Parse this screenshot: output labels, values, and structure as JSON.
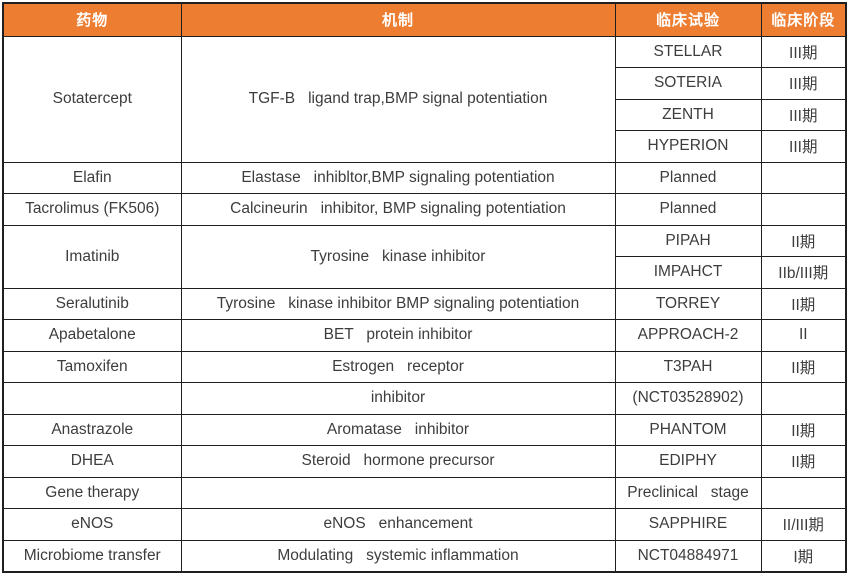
{
  "colors": {
    "header_bg": "#ED7D31",
    "header_text": "#FFFFFF",
    "body_text": "#3D3D3D",
    "border": "#1F1F1F"
  },
  "table": {
    "columns": [
      "药物",
      "机制",
      "临床试验",
      "临床阶段"
    ],
    "rows": [
      {
        "cells": [
          {
            "col": 0,
            "rowspan": 4,
            "text": "Sotatercept"
          },
          {
            "col": 1,
            "rowspan": 4,
            "text": "TGF-B   ligand trap,BMP signal potentiation"
          },
          {
            "col": 2,
            "text": "STELLAR"
          },
          {
            "col": 3,
            "text": "III期"
          }
        ]
      },
      {
        "cells": [
          {
            "col": 2,
            "text": "SOTERIA"
          },
          {
            "col": 3,
            "text": "III期"
          }
        ]
      },
      {
        "cells": [
          {
            "col": 2,
            "text": "ZENTH"
          },
          {
            "col": 3,
            "text": "III期"
          }
        ]
      },
      {
        "cells": [
          {
            "col": 2,
            "text": "HYPERION"
          },
          {
            "col": 3,
            "text": "III期"
          }
        ]
      },
      {
        "cells": [
          {
            "col": 0,
            "text": "Elafin"
          },
          {
            "col": 1,
            "text": "Elastase   inhibltor,BMP signaling potentiation"
          },
          {
            "col": 2,
            "text": "Planned"
          },
          {
            "col": 3,
            "text": ""
          }
        ]
      },
      {
        "cells": [
          {
            "col": 0,
            "text": "Tacrolimus (FK506)"
          },
          {
            "col": 1,
            "text": "Calcineurin   inhibitor, BMP signaling potentiation"
          },
          {
            "col": 2,
            "text": "Planned"
          },
          {
            "col": 3,
            "text": ""
          }
        ]
      },
      {
        "cells": [
          {
            "col": 0,
            "rowspan": 2,
            "text": "Imatinib"
          },
          {
            "col": 1,
            "rowspan": 2,
            "text": "Tyrosine   kinase inhibitor"
          },
          {
            "col": 2,
            "text": "PIPAH"
          },
          {
            "col": 3,
            "text": "II期"
          }
        ]
      },
      {
        "cells": [
          {
            "col": 2,
            "text": "IMPAHCT"
          },
          {
            "col": 3,
            "text": "IIb/III期"
          }
        ]
      },
      {
        "cells": [
          {
            "col": 0,
            "text": "Seralutinib"
          },
          {
            "col": 1,
            "text": "Tyrosine   kinase inhibitor BMP signaling potentiation"
          },
          {
            "col": 2,
            "text": "TORREY"
          },
          {
            "col": 3,
            "text": "II期"
          }
        ]
      },
      {
        "cells": [
          {
            "col": 0,
            "text": "Apabetalone"
          },
          {
            "col": 1,
            "text": "BET   protein inhibitor"
          },
          {
            "col": 2,
            "text": "APPROACH-2"
          },
          {
            "col": 3,
            "text": "II"
          }
        ]
      },
      {
        "cells": [
          {
            "col": 0,
            "text": "Tamoxifen"
          },
          {
            "col": 1,
            "text": "Estrogen   receptor"
          },
          {
            "col": 2,
            "text": "T3PAH"
          },
          {
            "col": 3,
            "text": "II期"
          }
        ]
      },
      {
        "cells": [
          {
            "col": 0,
            "text": ""
          },
          {
            "col": 1,
            "text": "inhibitor"
          },
          {
            "col": 2,
            "text": "(NCT03528902)"
          },
          {
            "col": 3,
            "text": ""
          }
        ]
      },
      {
        "cells": [
          {
            "col": 0,
            "text": "Anastrazole"
          },
          {
            "col": 1,
            "text": "Aromatase   inhibitor"
          },
          {
            "col": 2,
            "text": "PHANTOM"
          },
          {
            "col": 3,
            "text": "II期"
          }
        ]
      },
      {
        "cells": [
          {
            "col": 0,
            "text": "DHEA"
          },
          {
            "col": 1,
            "text": "Steroid   hormone precursor"
          },
          {
            "col": 2,
            "text": "EDIPHY"
          },
          {
            "col": 3,
            "text": "II期"
          }
        ]
      },
      {
        "cells": [
          {
            "col": 0,
            "text": "Gene therapy"
          },
          {
            "col": 1,
            "text": ""
          },
          {
            "col": 2,
            "text": "Preclinical   stage"
          },
          {
            "col": 3,
            "text": ""
          }
        ]
      },
      {
        "cells": [
          {
            "col": 0,
            "text": "eNOS"
          },
          {
            "col": 1,
            "text": "eNOS   enhancement"
          },
          {
            "col": 2,
            "text": "SAPPHIRE"
          },
          {
            "col": 3,
            "text": "II/III期"
          }
        ]
      },
      {
        "cells": [
          {
            "col": 0,
            "text": "Microbiome transfer"
          },
          {
            "col": 1,
            "text": "Modulating   systemic inflammation"
          },
          {
            "col": 2,
            "text": "NCT04884971"
          },
          {
            "col": 3,
            "text": "I期"
          }
        ]
      }
    ]
  }
}
